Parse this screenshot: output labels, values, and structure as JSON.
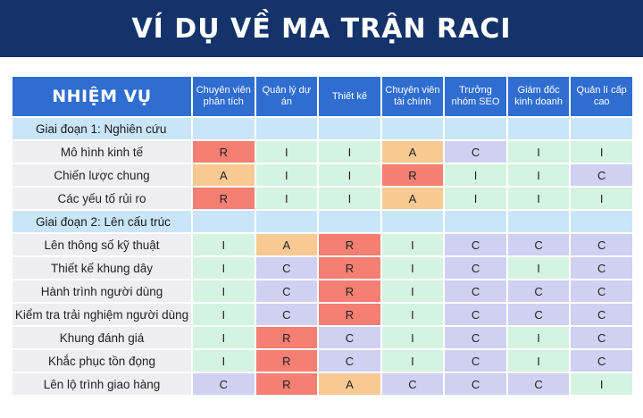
{
  "title": "VÍ DỤ VỀ MA TRẬN RACI",
  "header": {
    "task": "NHIỆM VỤ",
    "roles": [
      "Chuyên viên phân tích",
      "Quản lý dự án",
      "Thiết kế",
      "Chuyên viên tài chính",
      "Trưởng nhóm SEO",
      "Giám đốc kinh doanh",
      "Quản lí cấp cao"
    ]
  },
  "role_colors": {
    "R": "#f47f72",
    "A": "#f8c993",
    "C": "#d0d0f2",
    "I": "#d4f3e0",
    "header": "#2f6dd1",
    "banner": "#15336b",
    "phase": "#c9e6f8"
  },
  "rows": [
    {
      "type": "phase",
      "label": "Giai đoạn 1: Nghiên cứu"
    },
    {
      "type": "task",
      "label": "Mô hình kinh tế",
      "values": [
        "R",
        "I",
        "I",
        "A",
        "C",
        "I",
        "I"
      ]
    },
    {
      "type": "task",
      "label": "Chiến lược chung",
      "values": [
        "A",
        "I",
        "I",
        "R",
        "I",
        "I",
        "C"
      ]
    },
    {
      "type": "task",
      "label": "Các yếu tố rủi ro",
      "values": [
        "R",
        "I",
        "I",
        "A",
        "I",
        "I",
        "I"
      ]
    },
    {
      "type": "phase",
      "label": "Giai đoạn 2: Lên cấu trúc"
    },
    {
      "type": "task",
      "label": "Lên thông số kỹ thuật",
      "values": [
        "I",
        "A",
        "R",
        "I",
        "C",
        "C",
        "C"
      ]
    },
    {
      "type": "task",
      "label": "Thiết kế khung dây",
      "values": [
        "I",
        "C",
        "R",
        "I",
        "C",
        "I",
        "C"
      ]
    },
    {
      "type": "task",
      "label": "Hành trình người dùng",
      "values": [
        "I",
        "C",
        "R",
        "I",
        "C",
        "C",
        "C"
      ]
    },
    {
      "type": "task",
      "label": "Kiểm tra trải nghiệm người dùng",
      "values": [
        "I",
        "C",
        "R",
        "I",
        "C",
        "C",
        "C"
      ]
    },
    {
      "type": "task",
      "label": "Khung đánh giá",
      "values": [
        "I",
        "R",
        "C",
        "I",
        "C",
        "I",
        "C"
      ]
    },
    {
      "type": "task",
      "label": "Khắc phục tồn đọng",
      "values": [
        "I",
        "R",
        "C",
        "I",
        "C",
        "I",
        "C"
      ]
    },
    {
      "type": "task",
      "label": "Lên lộ trình giao hàng",
      "values": [
        "C",
        "R",
        "A",
        "C",
        "C",
        "C",
        "I"
      ]
    }
  ]
}
